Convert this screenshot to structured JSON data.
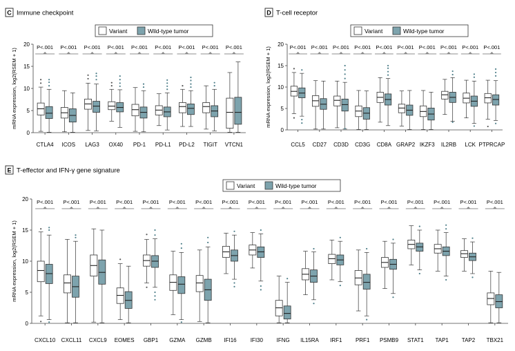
{
  "legend": {
    "variant": "Variant",
    "wild_type": "Wild-type tumor"
  },
  "colors": {
    "variant": "#ffffff",
    "wild_type": "#7da3ad",
    "outlier_wild_type": "#4f7f8a"
  },
  "chart_data": [
    {
      "type": "boxplot",
      "panel": "C",
      "title": "Immune checkpoint",
      "ylabel": "mRNA expression, log2(RSEM + 1)",
      "ylim": [
        0,
        20
      ],
      "yticks": [
        0,
        5,
        10,
        15,
        20
      ],
      "legend_position": "top-center",
      "significance_label": "P<.001",
      "categories": [
        "CTLA4",
        "ICOS",
        "LAG3",
        "OX40",
        "PD-1",
        "PD-L1",
        "PD-L2",
        "TIGIT",
        "VTCN1"
      ],
      "series": [
        {
          "name": "Variant",
          "boxes": [
            {
              "min": 0.3,
              "q1": 4.0,
              "median": 5.4,
              "q3": 6.7,
              "max": 10.3,
              "outliers": [
                11.2,
                12.0
              ]
            },
            {
              "min": 0.2,
              "q1": 3.3,
              "median": 4.5,
              "q3": 5.7,
              "max": 9.5,
              "outliers": []
            },
            {
              "min": 0.5,
              "q1": 5.3,
              "median": 6.5,
              "q3": 7.6,
              "max": 11.2,
              "outliers": [
                12.2,
                13.0
              ]
            },
            {
              "min": 2.6,
              "q1": 5.2,
              "median": 6.0,
              "q3": 7.0,
              "max": 9.8,
              "outliers": [
                10.6,
                11.3
              ]
            },
            {
              "min": 0.3,
              "q1": 3.8,
              "median": 5.2,
              "q3": 6.4,
              "max": 10.2,
              "outliers": []
            },
            {
              "min": 1.6,
              "q1": 4.0,
              "median": 5.1,
              "q3": 6.1,
              "max": 8.8,
              "outliers": []
            },
            {
              "min": 1.4,
              "q1": 4.5,
              "median": 5.9,
              "q3": 6.8,
              "max": 9.8,
              "outliers": [
                10.6
              ]
            },
            {
              "min": 0.8,
              "q1": 4.5,
              "median": 5.9,
              "q3": 6.8,
              "max": 10.6,
              "outliers": []
            },
            {
              "min": 0.1,
              "q1": 1.0,
              "median": 4.6,
              "q3": 7.8,
              "max": 13.6,
              "outliers": []
            }
          ]
        },
        {
          "name": "Wild-type tumor",
          "boxes": [
            {
              "min": 0.1,
              "q1": 3.2,
              "median": 4.4,
              "q3": 5.9,
              "max": 9.8,
              "outliers": [
                10.6,
                11.4,
                12.0
              ]
            },
            {
              "min": 0.1,
              "q1": 2.4,
              "median": 3.9,
              "q3": 5.4,
              "max": 9.0,
              "outliers": []
            },
            {
              "min": 0.4,
              "q1": 4.6,
              "median": 6.0,
              "q3": 7.1,
              "max": 11.0,
              "outliers": [
                12.0,
                12.8,
                13.4
              ]
            },
            {
              "min": 1.2,
              "q1": 4.7,
              "median": 5.7,
              "q3": 6.8,
              "max": 9.7,
              "outliers": [
                10.5,
                11.2,
                12.0,
                12.8
              ]
            },
            {
              "min": 0.2,
              "q1": 3.3,
              "median": 4.6,
              "q3": 5.8,
              "max": 9.5,
              "outliers": [
                10.3,
                11.0
              ]
            },
            {
              "min": 0.6,
              "q1": 3.6,
              "median": 4.7,
              "q3": 5.8,
              "max": 9.0,
              "outliers": [
                9.8,
                10.5,
                11.2,
                11.9
              ]
            },
            {
              "min": 1.4,
              "q1": 4.1,
              "median": 5.5,
              "q3": 6.5,
              "max": 9.5,
              "outliers": [
                10.3,
                11.0,
                11.8,
                12.5
              ]
            },
            {
              "min": 0.4,
              "q1": 3.6,
              "median": 4.9,
              "q3": 6.1,
              "max": 9.8,
              "outliers": [
                10.6,
                11.3
              ]
            },
            {
              "min": 0.1,
              "q1": 1.9,
              "median": 4.6,
              "q3": 8.0,
              "max": 16.0,
              "outliers": []
            }
          ]
        }
      ]
    },
    {
      "type": "boxplot",
      "panel": "D",
      "title": "T-cell receptor",
      "ylabel": "mRNA expression, log2(RSEM + 1)",
      "ylim": [
        0,
        20
      ],
      "yticks": [
        0,
        5,
        10,
        15,
        20
      ],
      "legend_position": "top-center",
      "significance_label": "P<.001",
      "categories": [
        "CCL5",
        "CD27",
        "CD3D",
        "CD3G",
        "CD8A",
        "GRAP2",
        "IKZF3",
        "IL2RB",
        "LCK",
        "PTPRCAP"
      ],
      "series": [
        {
          "name": "Variant",
          "boxes": [
            {
              "min": 3.8,
              "q1": 7.9,
              "median": 9.0,
              "q3": 10.2,
              "max": 13.4,
              "outliers": [
                2.8,
                14.3
              ]
            },
            {
              "min": 0.2,
              "q1": 5.5,
              "median": 6.8,
              "q3": 8.0,
              "max": 11.5,
              "outliers": []
            },
            {
              "min": 0.5,
              "q1": 5.6,
              "median": 6.9,
              "q3": 7.9,
              "max": 11.4,
              "outliers": []
            },
            {
              "min": 0.1,
              "q1": 3.1,
              "median": 4.4,
              "q3": 5.6,
              "max": 9.2,
              "outliers": []
            },
            {
              "min": 1.8,
              "q1": 6.4,
              "median": 7.6,
              "q3": 8.8,
              "max": 12.2,
              "outliers": []
            },
            {
              "min": 0.9,
              "q1": 4.0,
              "median": 5.1,
              "q3": 6.0,
              "max": 9.1,
              "outliers": []
            },
            {
              "min": 0.1,
              "q1": 3.1,
              "median": 4.3,
              "q3": 5.6,
              "max": 9.2,
              "outliers": []
            },
            {
              "min": 3.6,
              "q1": 7.2,
              "median": 8.2,
              "q3": 9.0,
              "max": 11.8,
              "outliers": []
            },
            {
              "min": 2.8,
              "q1": 6.3,
              "median": 7.4,
              "q3": 8.6,
              "max": 11.6,
              "outliers": []
            },
            {
              "min": 2.5,
              "q1": 6.3,
              "median": 7.5,
              "q3": 8.5,
              "max": 11.6,
              "outliers": [
                0.8
              ]
            }
          ]
        },
        {
          "name": "Wild-type tumor",
          "boxes": [
            {
              "min": 3.2,
              "q1": 7.5,
              "median": 8.6,
              "q3": 9.8,
              "max": 13.2,
              "outliers": [
                2.4,
                1.6,
                14.0
              ]
            },
            {
              "min": 0.2,
              "q1": 4.8,
              "median": 6.0,
              "q3": 7.3,
              "max": 11.4,
              "outliers": []
            },
            {
              "min": 0.2,
              "q1": 4.4,
              "median": 5.9,
              "q3": 7.2,
              "max": 11.1,
              "outliers": [
                0.3,
                12.0,
                13.0,
                14.0,
                15.0
              ]
            },
            {
              "min": 0.1,
              "q1": 2.5,
              "median": 3.9,
              "q3": 5.2,
              "max": 9.1,
              "outliers": []
            },
            {
              "min": 1.0,
              "q1": 5.8,
              "median": 7.1,
              "q3": 8.4,
              "max": 12.0,
              "outliers": [
                12.8,
                13.6,
                14.4,
                15.0
              ]
            },
            {
              "min": 0.1,
              "q1": 3.4,
              "median": 4.6,
              "q3": 5.8,
              "max": 9.2,
              "outliers": []
            },
            {
              "min": 0.1,
              "q1": 2.3,
              "median": 3.7,
              "q3": 5.1,
              "max": 8.8,
              "outliers": []
            },
            {
              "min": 2.0,
              "q1": 6.4,
              "median": 7.6,
              "q3": 8.8,
              "max": 12.2,
              "outliers": [
                1.8,
                12.9,
                13.7
              ]
            },
            {
              "min": 1.5,
              "q1": 5.5,
              "median": 6.7,
              "q3": 7.9,
              "max": 11.4,
              "outliers": [
                0.9,
                12.3,
                13.0
              ]
            },
            {
              "min": 2.2,
              "q1": 5.8,
              "median": 7.1,
              "q3": 8.2,
              "max": 11.5,
              "outliers": [
                1.5,
                12.6,
                13.4,
                14.2
              ]
            }
          ]
        }
      ]
    },
    {
      "type": "boxplot",
      "panel": "E",
      "title": "T-effector and IFN-γ gene signature",
      "ylabel": "mRNA expression, log2(RSEM + 1)",
      "ylim": [
        0,
        20
      ],
      "yticks": [
        0,
        5,
        10,
        15,
        20
      ],
      "legend_position": "top-center",
      "significance_label": "P<.001",
      "categories": [
        "CXCL10",
        "CXCL11",
        "CXCL9",
        "EOMES",
        "GBP1",
        "GZMA",
        "GZMB",
        "IFI16",
        "IFI30",
        "IFNG",
        "IL15RA",
        "IRF1",
        "PRF1",
        "PSMB9",
        "STAT1",
        "TAP1",
        "TAP2",
        "TBX21"
      ],
      "series": [
        {
          "name": "Variant",
          "boxes": [
            {
              "min": 1.2,
              "q1": 6.7,
              "median": 8.5,
              "q3": 10.0,
              "max": 14.7,
              "outliers": [
                0.3,
                15.2
              ]
            },
            {
              "min": 0.1,
              "q1": 4.9,
              "median": 6.5,
              "q3": 7.8,
              "max": 13.5,
              "outliers": []
            },
            {
              "min": 0.2,
              "q1": 7.6,
              "median": 9.3,
              "q3": 11.0,
              "max": 15.2,
              "outliers": []
            },
            {
              "min": 0.6,
              "q1": 3.2,
              "median": 4.5,
              "q3": 5.7,
              "max": 9.6,
              "outliers": [
                10.3
              ]
            },
            {
              "min": 6.5,
              "q1": 9.2,
              "median": 10.1,
              "q3": 11.0,
              "max": 13.5,
              "outliers": [
                5.8,
                14.3
              ]
            },
            {
              "min": 1.4,
              "q1": 5.3,
              "median": 6.6,
              "q3": 7.8,
              "max": 11.6,
              "outliers": []
            },
            {
              "min": 0.3,
              "q1": 5.1,
              "median": 6.5,
              "q3": 7.7,
              "max": 11.8,
              "outliers": []
            },
            {
              "min": 8.0,
              "q1": 10.6,
              "median": 11.5,
              "q3": 12.4,
              "max": 14.5,
              "outliers": []
            },
            {
              "min": 8.9,
              "q1": 11.0,
              "median": 11.8,
              "q3": 12.6,
              "max": 14.6,
              "outliers": []
            },
            {
              "min": 0.1,
              "q1": 1.2,
              "median": 2.5,
              "q3": 3.7,
              "max": 7.6,
              "outliers": []
            },
            {
              "min": 4.6,
              "q1": 7.0,
              "median": 7.9,
              "q3": 8.8,
              "max": 11.6,
              "outliers": []
            },
            {
              "min": 7.0,
              "q1": 9.6,
              "median": 10.4,
              "q3": 11.1,
              "max": 13.4,
              "outliers": []
            },
            {
              "min": 2.0,
              "q1": 6.2,
              "median": 7.3,
              "q3": 8.5,
              "max": 11.8,
              "outliers": []
            },
            {
              "min": 5.6,
              "q1": 9.0,
              "median": 9.8,
              "q3": 10.6,
              "max": 13.2,
              "outliers": []
            },
            {
              "min": 9.4,
              "q1": 12.0,
              "median": 12.7,
              "q3": 13.4,
              "max": 15.7,
              "outliers": []
            },
            {
              "min": 8.4,
              "q1": 11.3,
              "median": 12.0,
              "q3": 12.7,
              "max": 15.0,
              "outliers": []
            },
            {
              "min": 8.4,
              "q1": 10.6,
              "median": 11.2,
              "q3": 11.7,
              "max": 13.6,
              "outliers": []
            },
            {
              "min": 0.1,
              "q1": 3.0,
              "median": 4.0,
              "q3": 4.9,
              "max": 8.4,
              "outliers": []
            }
          ]
        },
        {
          "name": "Wild-type tumor",
          "boxes": [
            {
              "min": 0.6,
              "q1": 6.4,
              "median": 8.0,
              "q3": 9.5,
              "max": 14.2,
              "outliers": [
                0.2,
                15.0,
                15.4
              ]
            },
            {
              "min": 0.1,
              "q1": 4.2,
              "median": 5.9,
              "q3": 7.6,
              "max": 13.2,
              "outliers": [
                13.8,
                14.2
              ]
            },
            {
              "min": 0.1,
              "q1": 6.3,
              "median": 8.2,
              "q3": 10.2,
              "max": 15.0,
              "outliers": []
            },
            {
              "min": 0.1,
              "q1": 2.4,
              "median": 3.7,
              "q3": 5.1,
              "max": 9.2,
              "outliers": []
            },
            {
              "min": 5.8,
              "q1": 9.0,
              "median": 10.0,
              "q3": 10.9,
              "max": 13.6,
              "outliers": [
                5.0,
                4.4,
                3.8,
                14.2,
                15.0
              ]
            },
            {
              "min": 0.6,
              "q1": 4.8,
              "median": 6.3,
              "q3": 7.5,
              "max": 11.4,
              "outliers": [
                0.2,
                12.1,
                12.8
              ]
            },
            {
              "min": 0.1,
              "q1": 3.7,
              "median": 5.4,
              "q3": 7.1,
              "max": 12.3,
              "outliers": [
                13.0,
                13.8
              ]
            },
            {
              "min": 7.1,
              "q1": 10.0,
              "median": 10.9,
              "q3": 11.8,
              "max": 14.2,
              "outliers": [
                6.5,
                5.9,
                14.8
              ]
            },
            {
              "min": 6.8,
              "q1": 10.6,
              "median": 11.5,
              "q3": 12.3,
              "max": 14.4,
              "outliers": [
                6.0,
                5.4,
                15.0
              ]
            },
            {
              "min": 0.1,
              "q1": 0.7,
              "median": 1.6,
              "q3": 2.8,
              "max": 6.6,
              "outliers": [
                7.2
              ]
            },
            {
              "min": 3.8,
              "q1": 6.6,
              "median": 7.6,
              "q3": 8.6,
              "max": 11.5,
              "outliers": [
                3.2,
                12.0
              ]
            },
            {
              "min": 6.7,
              "q1": 9.4,
              "median": 10.2,
              "q3": 11.0,
              "max": 13.2,
              "outliers": [
                6.1,
                13.8
              ]
            },
            {
              "min": 1.2,
              "q1": 5.5,
              "median": 6.6,
              "q3": 7.9,
              "max": 11.4,
              "outliers": [
                0.6,
                12.0
              ]
            },
            {
              "min": 4.8,
              "q1": 8.7,
              "median": 9.5,
              "q3": 10.3,
              "max": 12.9,
              "outliers": [
                4.2,
                13.5
              ]
            },
            {
              "min": 8.6,
              "q1": 11.6,
              "median": 12.3,
              "q3": 12.9,
              "max": 15.0,
              "outliers": [
                8.0,
                15.6
              ]
            },
            {
              "min": 7.6,
              "q1": 10.9,
              "median": 11.6,
              "q3": 12.3,
              "max": 14.6,
              "outliers": [
                7.0,
                15.2,
                15.8
              ]
            },
            {
              "min": 8.0,
              "q1": 10.1,
              "median": 10.7,
              "q3": 11.3,
              "max": 13.1,
              "outliers": [
                7.4,
                13.7
              ]
            },
            {
              "min": 0.1,
              "q1": 2.5,
              "median": 3.5,
              "q3": 4.6,
              "max": 8.2,
              "outliers": []
            }
          ]
        }
      ]
    }
  ]
}
